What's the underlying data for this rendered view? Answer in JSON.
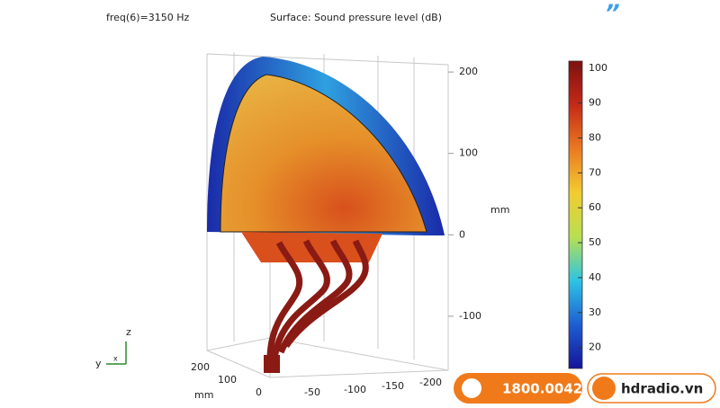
{
  "header": {
    "frequency": "freq(6)=3150 Hz",
    "plot_title": "Surface: Sound pressure level (dB)"
  },
  "z_axis": {
    "unit": "mm",
    "lim": [
      -120,
      220
    ],
    "ticks": [
      -100,
      0,
      100,
      200
    ]
  },
  "colorbar": {
    "lim": [
      14,
      102
    ],
    "ticks": [
      20,
      30,
      40,
      50,
      60,
      70,
      80,
      90,
      100
    ],
    "colors": [
      "#14149a",
      "#1e5ed2",
      "#2ec4e4",
      "#b8e050",
      "#f2cc30",
      "#ea7a22",
      "#c42a18",
      "#7e1010"
    ]
  },
  "bottom_axes": {
    "unit": "mm",
    "y_ticks": [
      200,
      100,
      0
    ],
    "x_ticks": [
      -50,
      -100,
      -150,
      -200
    ]
  },
  "triad": {
    "z": "z",
    "y": "y",
    "x": "x"
  },
  "contact": {
    "phone": "1800.0042",
    "website": "hdradio.vn"
  }
}
